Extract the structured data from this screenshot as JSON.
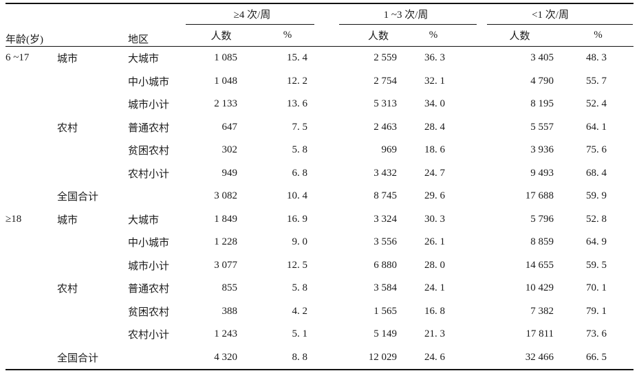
{
  "colors": {
    "background": "#ffffff",
    "text": "#1a1a1a",
    "rule": "#111111"
  },
  "table": {
    "header": {
      "age": "年龄(岁)",
      "area": "",
      "region": "地区",
      "groups": [
        {
          "label": "≥4 次/周",
          "sub": [
            "人数",
            "%"
          ]
        },
        {
          "label": "1 ~3 次/周",
          "sub": [
            "人数",
            "%"
          ]
        },
        {
          "label": "<1 次/周",
          "sub": [
            "人数",
            "%"
          ]
        }
      ]
    },
    "rows": [
      {
        "age": "6 ~17",
        "area": "城市",
        "region": "大城市",
        "g1n": "1 085",
        "g1p": "15. 4",
        "g2n": "2 559",
        "g2p": "36. 3",
        "g3n": "3 405",
        "g3p": "48. 3"
      },
      {
        "age": "",
        "area": "",
        "region": "中小城市",
        "g1n": "1 048",
        "g1p": "12. 2",
        "g2n": "2 754",
        "g2p": "32. 1",
        "g3n": "4 790",
        "g3p": "55. 7"
      },
      {
        "age": "",
        "area": "",
        "region": "城市小计",
        "g1n": "2 133",
        "g1p": "13. 6",
        "g2n": "5 313",
        "g2p": "34. 0",
        "g3n": "8 195",
        "g3p": "52. 4"
      },
      {
        "age": "",
        "area": "农村",
        "region": "普通农村",
        "g1n": "647",
        "g1p": "7. 5",
        "g2n": "2 463",
        "g2p": "28. 4",
        "g3n": "5 557",
        "g3p": "64. 1"
      },
      {
        "age": "",
        "area": "",
        "region": "贫困农村",
        "g1n": "302",
        "g1p": "5. 8",
        "g2n": "969",
        "g2p": "18. 6",
        "g3n": "3 936",
        "g3p": "75. 6"
      },
      {
        "age": "",
        "area": "",
        "region": "农村小计",
        "g1n": "949",
        "g1p": "6. 8",
        "g2n": "3 432",
        "g2p": "24. 7",
        "g3n": "9 493",
        "g3p": "68. 4"
      },
      {
        "age": "",
        "area": "全国合计",
        "region": "",
        "g1n": "3 082",
        "g1p": "10. 4",
        "g2n": "8 745",
        "g2p": "29. 6",
        "g3n": "17 688",
        "g3p": "59. 9"
      },
      {
        "age": "≥18",
        "area": "城市",
        "region": "大城市",
        "g1n": "1 849",
        "g1p": "16. 9",
        "g2n": "3 324",
        "g2p": "30. 3",
        "g3n": "5 796",
        "g3p": "52. 8"
      },
      {
        "age": "",
        "area": "",
        "region": "中小城市",
        "g1n": "1 228",
        "g1p": "9. 0",
        "g2n": "3 556",
        "g2p": "26. 1",
        "g3n": "8 859",
        "g3p": "64. 9"
      },
      {
        "age": "",
        "area": "",
        "region": "城市小计",
        "g1n": "3 077",
        "g1p": "12. 5",
        "g2n": "6 880",
        "g2p": "28. 0",
        "g3n": "14 655",
        "g3p": "59. 5"
      },
      {
        "age": "",
        "area": "农村",
        "region": "普通农村",
        "g1n": "855",
        "g1p": "5. 8",
        "g2n": "3 584",
        "g2p": "24. 1",
        "g3n": "10 429",
        "g3p": "70. 1"
      },
      {
        "age": "",
        "area": "",
        "region": "贫困农村",
        "g1n": "388",
        "g1p": "4. 2",
        "g2n": "1 565",
        "g2p": "16. 8",
        "g3n": "7 382",
        "g3p": "79. 1"
      },
      {
        "age": "",
        "area": "",
        "region": "农村小计",
        "g1n": "1 243",
        "g1p": "5. 1",
        "g2n": "5 149",
        "g2p": "21. 3",
        "g3n": "17 811",
        "g3p": "73. 6"
      },
      {
        "age": "",
        "area": "全国合计",
        "region": "",
        "g1n": "4 320",
        "g1p": "8. 8",
        "g2n": "12 029",
        "g2p": "24. 6",
        "g3n": "32 466",
        "g3p": "66. 5"
      }
    ]
  },
  "chart_data": {
    "type": "table",
    "title": "",
    "column_groups": [
      "≥4 次/周",
      "1 ~3 次/周",
      "<1 次/周"
    ],
    "columns": [
      "年龄(岁)",
      "",
      "地区",
      "≥4 次/周 人数",
      "≥4 次/周 %",
      "1~3 次/周 人数",
      "1~3 次/周 %",
      "<1 次/周 人数",
      "<1 次/周 %"
    ],
    "rows": [
      [
        "6~17",
        "城市",
        "大城市",
        1085,
        15.4,
        2559,
        36.3,
        3405,
        48.3
      ],
      [
        "",
        "",
        "中小城市",
        1048,
        12.2,
        2754,
        32.1,
        4790,
        55.7
      ],
      [
        "",
        "",
        "城市小计",
        2133,
        13.6,
        5313,
        34.0,
        8195,
        52.4
      ],
      [
        "",
        "农村",
        "普通农村",
        647,
        7.5,
        2463,
        28.4,
        5557,
        64.1
      ],
      [
        "",
        "",
        "贫困农村",
        302,
        5.8,
        969,
        18.6,
        3936,
        75.6
      ],
      [
        "",
        "",
        "农村小计",
        949,
        6.8,
        3432,
        24.7,
        9493,
        68.4
      ],
      [
        "",
        "全国合计",
        "",
        3082,
        10.4,
        8745,
        29.6,
        17688,
        59.9
      ],
      [
        "≥18",
        "城市",
        "大城市",
        1849,
        16.9,
        3324,
        30.3,
        5796,
        52.8
      ],
      [
        "",
        "",
        "中小城市",
        1228,
        9.0,
        3556,
        26.1,
        8859,
        64.9
      ],
      [
        "",
        "",
        "城市小计",
        3077,
        12.5,
        6880,
        28.0,
        14655,
        59.5
      ],
      [
        "",
        "农村",
        "普通农村",
        855,
        5.8,
        3584,
        24.1,
        10429,
        70.1
      ],
      [
        "",
        "",
        "贫困农村",
        388,
        4.2,
        1565,
        16.8,
        7382,
        79.1
      ],
      [
        "",
        "",
        "农村小计",
        1243,
        5.1,
        5149,
        21.3,
        17811,
        73.6
      ],
      [
        "",
        "全国合计",
        "",
        4320,
        8.8,
        12029,
        24.6,
        32466,
        66.5
      ]
    ]
  }
}
